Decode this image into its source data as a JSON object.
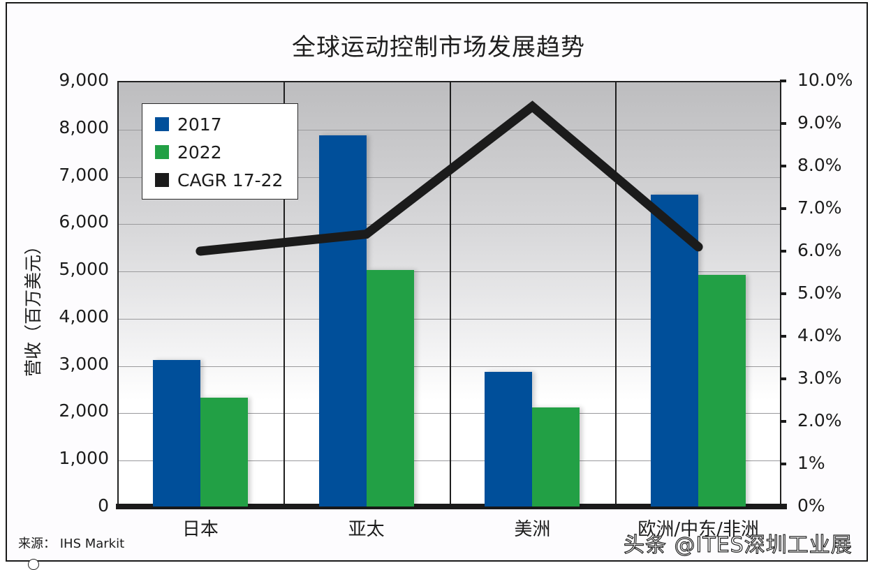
{
  "chart_data": {
    "type": "bar",
    "title": "全球运动控制市场发展趋势",
    "xlabel": "",
    "ylabel": "营收（百万美元）",
    "y2label": "",
    "categories": [
      "日本",
      "亚太",
      "美洲",
      "欧洲/中东/非洲"
    ],
    "series": [
      {
        "name": "2017",
        "type": "bar",
        "axis": "left",
        "color": "#004f9a",
        "values": [
          3100,
          7850,
          2850,
          6600
        ]
      },
      {
        "name": "2022",
        "type": "bar",
        "axis": "left",
        "color": "#22a045",
        "values": [
          2300,
          5000,
          2100,
          4900
        ]
      },
      {
        "name": "CAGR 17-22",
        "type": "line",
        "axis": "right",
        "color": "#1b1b1b",
        "values": [
          6.0,
          6.4,
          9.4,
          6.1
        ],
        "unit": "%"
      }
    ],
    "ylim": [
      0,
      9000
    ],
    "y2lim": [
      0,
      10
    ],
    "yticks": [
      "0",
      "1,000",
      "2,000",
      "3,000",
      "4,000",
      "5,000",
      "6,000",
      "7,000",
      "8,000",
      "9,000"
    ],
    "y2ticks": [
      "0%",
      "1%",
      "2.0%",
      "3.0%",
      "4.0%",
      "5.0%",
      "6.0%",
      "7.0%",
      "8.0%",
      "9.0%",
      "10.0%"
    ],
    "grid": true,
    "legend_position": "top-left inside"
  },
  "header": {
    "title": "全球运动控制市场发展趋势"
  },
  "axes": {
    "ylabel": "营收（百万美元）",
    "left_ticks": [
      "9,000",
      "8,000",
      "7,000",
      "6,000",
      "5,000",
      "4,000",
      "3,000",
      "2,000",
      "1,000",
      "0"
    ],
    "right_ticks": [
      "10.0%",
      "9.0%",
      "8.0%",
      "7.0%",
      "6.0%",
      "5.0%",
      "4.0%",
      "3.0%",
      "2.0%",
      "1%",
      "0%"
    ],
    "categories": [
      "日本",
      "亚太",
      "美洲",
      "欧洲/中东/非洲"
    ]
  },
  "legend": {
    "items": [
      {
        "label": "2017",
        "color": "#004f9a"
      },
      {
        "label": "2022",
        "color": "#22a045"
      },
      {
        "label": "CAGR 17-22",
        "color": "#1b1b1b"
      }
    ]
  },
  "footer": {
    "source": "来源：  IHS Markit",
    "watermark": "头条 @ITES深圳工业展"
  }
}
